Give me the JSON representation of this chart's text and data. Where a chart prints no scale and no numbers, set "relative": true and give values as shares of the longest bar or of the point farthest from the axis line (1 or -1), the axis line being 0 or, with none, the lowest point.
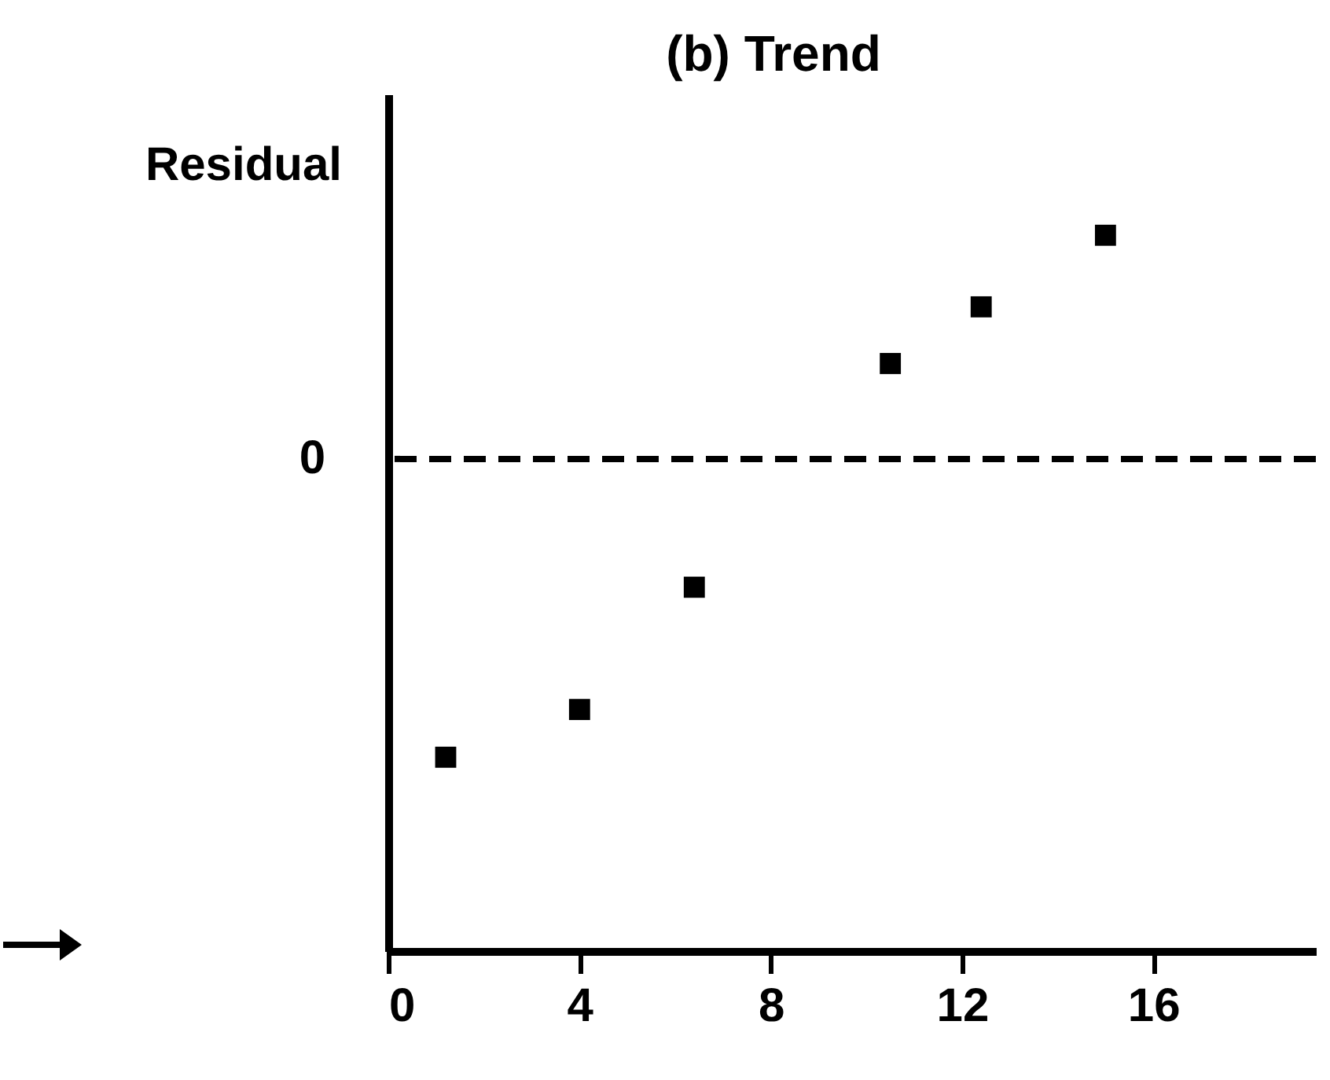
{
  "chart_data": {
    "type": "scatter",
    "title": "(b) Trend",
    "ylabel": "Residual",
    "relative": true,
    "x": [
      1.2,
      4,
      6.4,
      10.5,
      12.4,
      15
    ],
    "values": [
      -1,
      -0.84,
      -0.43,
      0.32,
      0.51,
      0.75
    ],
    "color": "#000000",
    "marker": "square",
    "grid": false,
    "xlim": [
      0,
      19.4
    ],
    "xticks": [
      0,
      4,
      8,
      12,
      16
    ],
    "ref_lines": [
      {
        "axis": "y",
        "value": 0,
        "label": "0",
        "line_style": "dashed",
        "color": "#000000"
      }
    ]
  }
}
